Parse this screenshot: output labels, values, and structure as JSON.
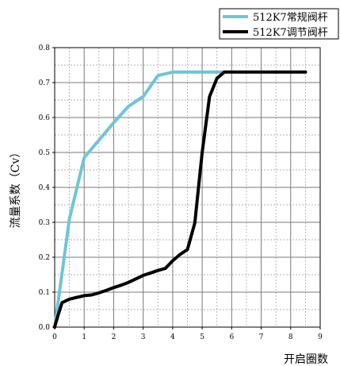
{
  "chart_data": {
    "type": "line",
    "xlabel": "开启圈数",
    "ylabel": "流量系数（Cv）",
    "xlim": [
      0,
      9
    ],
    "ylim": [
      0,
      0.8
    ],
    "x_ticks": [
      "0",
      "1",
      "2",
      "3",
      "4",
      "5",
      "6",
      "7",
      "8",
      "9"
    ],
    "y_ticks": [
      "0.0",
      "0.1",
      "0.2",
      "0.3",
      "0.4",
      "0.5",
      "0.6",
      "0.7",
      "0.8"
    ],
    "grid": true,
    "legend_position": "top-right",
    "series": [
      {
        "name": "512K7常规阀杆",
        "color": "#6ec6d4",
        "x": [
          0,
          0.5,
          1,
          1.5,
          2,
          2.5,
          3,
          3.5,
          4,
          4.5,
          5,
          5.5,
          5.75
        ],
        "y": [
          0,
          0.31,
          0.485,
          0.535,
          0.585,
          0.632,
          0.66,
          0.72,
          0.73,
          0.73,
          0.73,
          0.73,
          0.73
        ]
      },
      {
        "name": "512K7调节阀杆",
        "color": "#000000",
        "x": [
          0,
          0.1,
          0.25,
          0.5,
          0.75,
          1,
          1.25,
          1.5,
          1.75,
          2,
          2.25,
          2.5,
          2.75,
          3,
          3.25,
          3.5,
          3.75,
          4,
          4.25,
          4.5,
          4.75,
          5,
          5.25,
          5.5,
          5.75,
          6,
          7,
          8,
          8.5
        ],
        "y": [
          0,
          0.03,
          0.07,
          0.08,
          0.085,
          0.09,
          0.092,
          0.098,
          0.105,
          0.113,
          0.12,
          0.128,
          0.138,
          0.148,
          0.155,
          0.162,
          0.168,
          0.19,
          0.208,
          0.222,
          0.298,
          0.5,
          0.66,
          0.712,
          0.73,
          0.73,
          0.73,
          0.73,
          0.73
        ]
      }
    ]
  }
}
